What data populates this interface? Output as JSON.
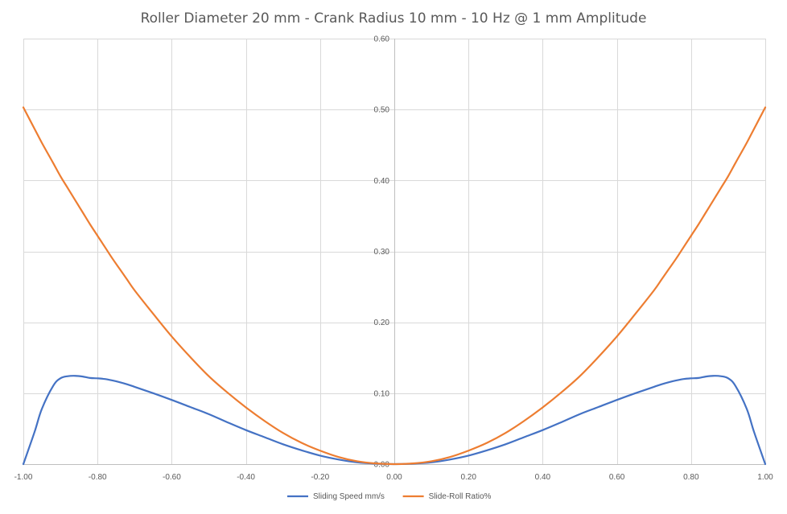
{
  "chart_data": {
    "type": "line",
    "title": "Roller Diameter 20 mm - Crank Radius 10 mm - 10 Hz @ 1 mm Amplitude",
    "xlabel": "",
    "ylabel": "",
    "xlim": [
      -1.0,
      1.0
    ],
    "ylim": [
      0.0,
      0.6
    ],
    "grid": true,
    "legend_position": "bottom",
    "x_ticks": [
      "-1.00",
      "-0.80",
      "-0.60",
      "-0.40",
      "-0.20",
      "0.00",
      "0.20",
      "0.40",
      "0.60",
      "0.80",
      "1.00"
    ],
    "y_ticks": [
      "0.00",
      "0.10",
      "0.20",
      "0.30",
      "0.40",
      "0.50",
      "0.60"
    ],
    "x": [
      -1.0,
      -0.97,
      -0.95,
      -0.92,
      -0.9,
      -0.88,
      -0.86,
      -0.84,
      -0.82,
      -0.8,
      -0.78,
      -0.76,
      -0.74,
      -0.72,
      -0.7,
      -0.65,
      -0.6,
      -0.55,
      -0.5,
      -0.45,
      -0.4,
      -0.35,
      -0.3,
      -0.25,
      -0.2,
      -0.15,
      -0.1,
      -0.05,
      0.0,
      0.05,
      0.1,
      0.15,
      0.2,
      0.25,
      0.3,
      0.35,
      0.4,
      0.45,
      0.5,
      0.55,
      0.6,
      0.65,
      0.7,
      0.72,
      0.74,
      0.76,
      0.78,
      0.8,
      0.82,
      0.84,
      0.86,
      0.88,
      0.9,
      0.92,
      0.95,
      0.97,
      1.0
    ],
    "series": [
      {
        "name": "Sliding Speed mm/s",
        "color": "#4472c4",
        "values": [
          0.0,
          0.045,
          0.078,
          0.11,
          0.121,
          0.124,
          0.1245,
          0.1235,
          0.1215,
          0.121,
          0.12,
          0.118,
          0.1155,
          0.1125,
          0.109,
          0.1,
          0.0905,
          0.0805,
          0.0705,
          0.059,
          0.048,
          0.038,
          0.028,
          0.0195,
          0.012,
          0.0065,
          0.0025,
          0.0006,
          0.0,
          0.0006,
          0.0025,
          0.0065,
          0.012,
          0.0195,
          0.028,
          0.038,
          0.048,
          0.059,
          0.0705,
          0.0805,
          0.0905,
          0.1,
          0.109,
          0.1125,
          0.1155,
          0.118,
          0.12,
          0.121,
          0.1215,
          0.1235,
          0.1245,
          0.124,
          0.121,
          0.11,
          0.078,
          0.045,
          0.0
        ]
      },
      {
        "name": "Slide-Roll Ratio%",
        "color": "#ed7d31",
        "values": [
          0.503,
          0.473,
          0.453,
          0.425,
          0.406,
          0.389,
          0.372,
          0.355,
          0.338,
          0.322,
          0.306,
          0.29,
          0.275,
          0.26,
          0.245,
          0.212,
          0.18,
          0.151,
          0.124,
          0.101,
          0.08,
          0.061,
          0.044,
          0.03,
          0.019,
          0.01,
          0.004,
          0.001,
          0.0,
          0.001,
          0.004,
          0.01,
          0.019,
          0.03,
          0.044,
          0.061,
          0.08,
          0.101,
          0.124,
          0.151,
          0.18,
          0.212,
          0.245,
          0.26,
          0.275,
          0.29,
          0.306,
          0.322,
          0.338,
          0.355,
          0.372,
          0.389,
          0.406,
          0.425,
          0.453,
          0.473,
          0.503
        ]
      }
    ]
  }
}
